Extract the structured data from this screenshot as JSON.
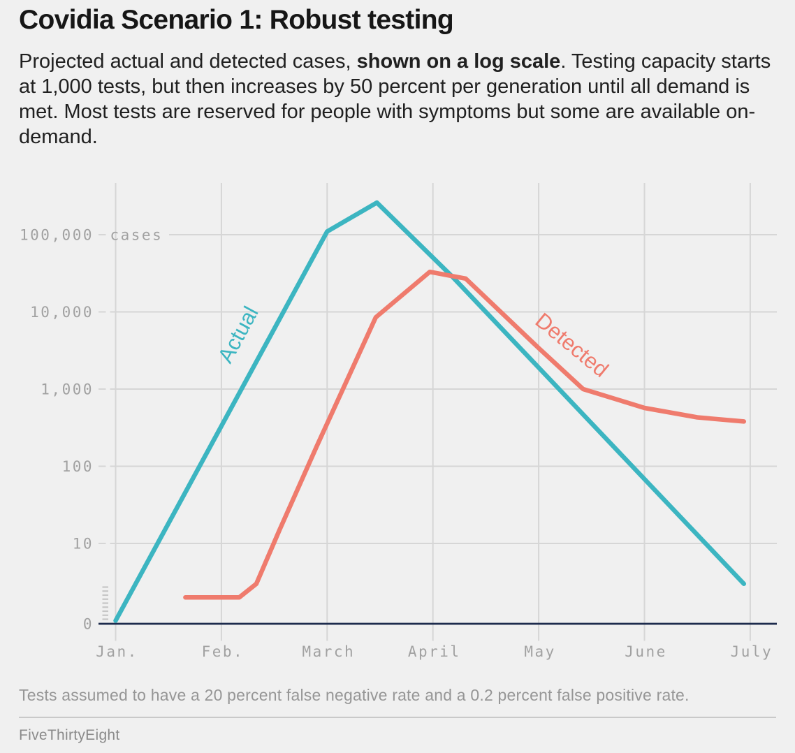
{
  "title": "Covidia Scenario 1: Robust testing",
  "subtitle": {
    "pre": "Projected actual and detected cases, ",
    "bold": "shown on a log scale",
    "post": ". Testing capacity starts at 1,000 tests, but then increases by 50 percent per generation until all demand is met. Most tests are reserved for people with symptoms but some are available on-demand."
  },
  "footnote": "Tests assumed to have a 20 percent false negative rate and a 0.2 percent false positive rate.",
  "attribution": "FiveThirtyEight",
  "colors": {
    "background": "#f0f0f0",
    "actual": "#3cb5c1",
    "detected": "#ef7b6d",
    "grid": "#d6d6d6",
    "axis": "#1d2b4d",
    "break_dashes": "#c6c6c6",
    "tick_text": "#a1a1a1"
  },
  "chart_data": {
    "type": "line",
    "title": "Covidia Scenario 1: Robust testing",
    "x_axis": {
      "tick_labels": [
        "Jan.",
        "Feb.",
        "March",
        "April",
        "May",
        "June",
        "July"
      ]
    },
    "y_axis": {
      "scale": "log",
      "unit_label": "cases",
      "grid": true,
      "ticks": [
        {
          "label": "100,000",
          "value": 100000
        },
        {
          "label": "10,000",
          "value": 10000
        },
        {
          "label": "1,000",
          "value": 1000
        },
        {
          "label": "100",
          "value": 100
        },
        {
          "label": "10",
          "value": 10
        },
        {
          "label": "0",
          "value": 0
        }
      ]
    },
    "series": [
      {
        "name": "Actual",
        "color_key": "actual",
        "points": [
          [
            0.0,
            1
          ],
          [
            2.0,
            110000
          ],
          [
            2.47,
            260000
          ],
          [
            3.19,
            28000
          ],
          [
            5.94,
            3
          ]
        ]
      },
      {
        "name": "Detected",
        "color_key": "detected",
        "points": [
          [
            0.66,
            2
          ],
          [
            1.17,
            2
          ],
          [
            1.33,
            3
          ],
          [
            1.55,
            15
          ],
          [
            1.9,
            180
          ],
          [
            2.46,
            8500
          ],
          [
            2.97,
            33000
          ],
          [
            3.31,
            27000
          ],
          [
            4.0,
            3400
          ],
          [
            4.42,
            1000
          ],
          [
            5.0,
            570
          ],
          [
            5.5,
            430
          ],
          [
            5.94,
            380
          ]
        ]
      }
    ],
    "annotations": [
      {
        "text": "Actual",
        "x": 350,
        "y": 484,
        "angle": -61.6,
        "color_key": "actual"
      },
      {
        "text": "Detected",
        "x": 812,
        "y": 502,
        "angle": 39.5,
        "color_key": "detected"
      }
    ]
  }
}
